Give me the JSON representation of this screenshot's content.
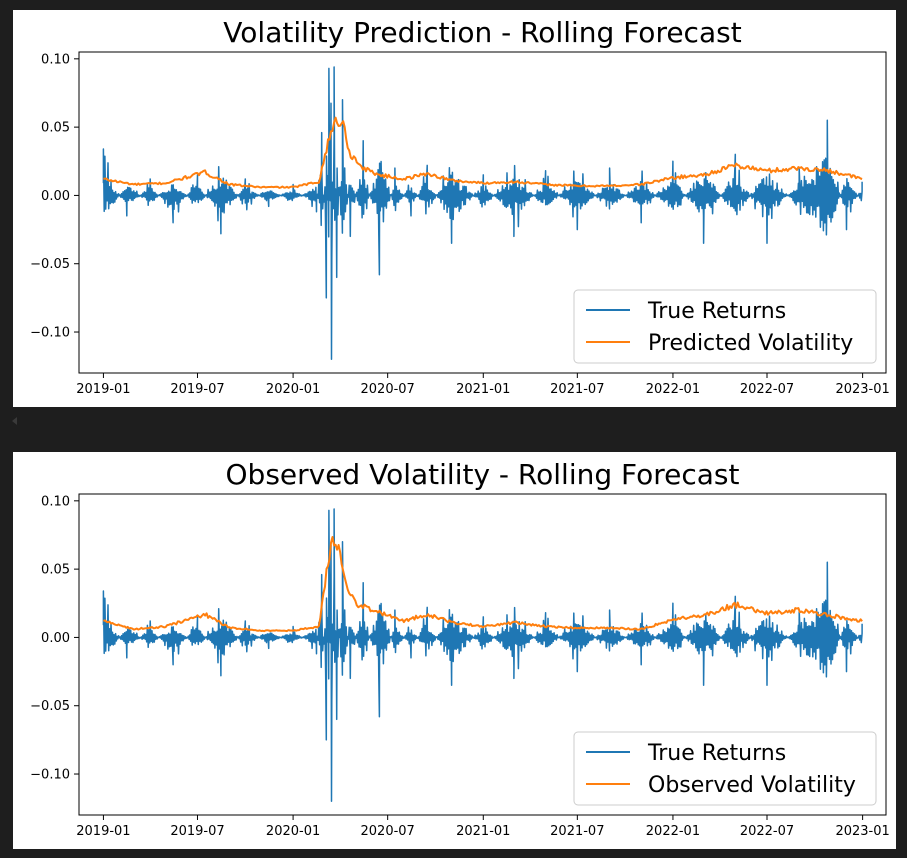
{
  "chart_data": [
    {
      "type": "line",
      "title": "Volatility Prediction - Rolling Forecast",
      "xlabel": "",
      "ylabel": "",
      "xlim": [
        "2018-11-15",
        "2023-02-15"
      ],
      "ylim": [
        -0.13,
        0.105
      ],
      "x_ticks": [
        "2019-01",
        "2019-07",
        "2020-01",
        "2020-07",
        "2021-01",
        "2021-07",
        "2022-01",
        "2022-07",
        "2023-01"
      ],
      "y_ticks": [
        0.1,
        0.05,
        0.0,
        -0.05,
        -0.1
      ],
      "y_tick_labels": [
        "0.10",
        "0.05",
        "0.00",
        "−0.05",
        "−0.10"
      ],
      "grid": false,
      "legend_position": "bottom-right",
      "series": [
        {
          "name": "True Returns",
          "color": "#1f77b4",
          "x": [
            "2019-01-01",
            "2019-02-15",
            "2019-04-01",
            "2019-05-15",
            "2019-07-01",
            "2019-08-15",
            "2019-10-01",
            "2019-11-15",
            "2020-01-01",
            "2020-02-15",
            "2020-02-25",
            "2020-03-05",
            "2020-03-10",
            "2020-03-15",
            "2020-03-20",
            "2020-03-25",
            "2020-04-05",
            "2020-04-20",
            "2020-05-15",
            "2020-06-15",
            "2020-07-15",
            "2020-08-15",
            "2020-09-15",
            "2020-11-01",
            "2021-01-01",
            "2021-03-01",
            "2021-05-01",
            "2021-07-01",
            "2021-09-01",
            "2021-11-01",
            "2022-01-01",
            "2022-03-01",
            "2022-05-01",
            "2022-07-01",
            "2022-09-01",
            "2022-10-25",
            "2022-12-01",
            "2022-12-31"
          ],
          "values": [
            0.034,
            -0.015,
            0.012,
            -0.02,
            0.015,
            -0.028,
            0.012,
            -0.008,
            0.008,
            -0.012,
            0.046,
            -0.075,
            0.093,
            -0.12,
            0.094,
            -0.06,
            0.07,
            -0.03,
            0.04,
            -0.058,
            0.02,
            -0.015,
            0.022,
            -0.035,
            0.015,
            -0.03,
            0.018,
            -0.025,
            0.02,
            -0.02,
            0.025,
            -0.035,
            0.03,
            -0.035,
            0.02,
            0.055,
            -0.025,
            0.01
          ]
        },
        {
          "name": "Predicted Volatility",
          "color": "#ff7f0e",
          "x": [
            "2019-01-01",
            "2019-03-01",
            "2019-05-01",
            "2019-07-15",
            "2019-09-01",
            "2019-11-01",
            "2020-01-01",
            "2020-02-20",
            "2020-03-01",
            "2020-03-20",
            "2020-04-05",
            "2020-04-20",
            "2020-05-15",
            "2020-06-15",
            "2020-08-01",
            "2020-09-15",
            "2020-11-01",
            "2021-01-01",
            "2021-03-01",
            "2021-05-01",
            "2021-07-01",
            "2021-09-01",
            "2021-11-01",
            "2022-01-01",
            "2022-03-01",
            "2022-05-01",
            "2022-07-01",
            "2022-09-01",
            "2022-11-01",
            "2022-12-31"
          ],
          "values": [
            0.012,
            0.008,
            0.009,
            0.017,
            0.008,
            0.006,
            0.006,
            0.01,
            0.028,
            0.054,
            0.054,
            0.03,
            0.02,
            0.015,
            0.012,
            0.016,
            0.011,
            0.009,
            0.01,
            0.008,
            0.007,
            0.007,
            0.008,
            0.013,
            0.015,
            0.022,
            0.018,
            0.02,
            0.018,
            0.012
          ]
        }
      ]
    },
    {
      "type": "line",
      "title": "Observed Volatility - Rolling Forecast",
      "xlabel": "",
      "ylabel": "",
      "xlim": [
        "2018-11-15",
        "2023-02-15"
      ],
      "ylim": [
        -0.13,
        0.105
      ],
      "x_ticks": [
        "2019-01",
        "2019-07",
        "2020-01",
        "2020-07",
        "2021-01",
        "2021-07",
        "2022-01",
        "2022-07",
        "2023-01"
      ],
      "y_ticks": [
        0.1,
        0.05,
        0.0,
        -0.05,
        -0.1
      ],
      "y_tick_labels": [
        "0.10",
        "0.05",
        "0.00",
        "−0.05",
        "−0.10"
      ],
      "grid": false,
      "legend_position": "bottom-right",
      "series": [
        {
          "name": "True Returns",
          "color": "#1f77b4",
          "x": [
            "2019-01-01",
            "2019-02-15",
            "2019-04-01",
            "2019-05-15",
            "2019-07-01",
            "2019-08-15",
            "2019-10-01",
            "2019-11-15",
            "2020-01-01",
            "2020-02-15",
            "2020-02-25",
            "2020-03-05",
            "2020-03-10",
            "2020-03-15",
            "2020-03-20",
            "2020-03-25",
            "2020-04-05",
            "2020-04-20",
            "2020-05-15",
            "2020-06-15",
            "2020-07-15",
            "2020-08-15",
            "2020-09-15",
            "2020-11-01",
            "2021-01-01",
            "2021-03-01",
            "2021-05-01",
            "2021-07-01",
            "2021-09-01",
            "2021-11-01",
            "2022-01-01",
            "2022-03-01",
            "2022-05-01",
            "2022-07-01",
            "2022-09-01",
            "2022-10-25",
            "2022-12-01",
            "2022-12-31"
          ],
          "values": [
            0.034,
            -0.015,
            0.012,
            -0.02,
            0.015,
            -0.028,
            0.012,
            -0.008,
            0.008,
            -0.012,
            0.046,
            -0.075,
            0.093,
            -0.12,
            0.094,
            -0.06,
            0.07,
            -0.03,
            0.04,
            -0.058,
            0.02,
            -0.015,
            0.022,
            -0.035,
            0.015,
            -0.03,
            0.018,
            -0.025,
            0.02,
            -0.02,
            0.025,
            -0.035,
            0.03,
            -0.035,
            0.02,
            0.055,
            -0.025,
            0.01
          ]
        },
        {
          "name": "Observed Volatility",
          "color": "#ff7f0e",
          "x": [
            "2019-01-01",
            "2019-03-01",
            "2019-05-01",
            "2019-07-15",
            "2019-09-01",
            "2019-11-01",
            "2020-01-01",
            "2020-02-20",
            "2020-03-01",
            "2020-03-15",
            "2020-03-25",
            "2020-04-10",
            "2020-05-01",
            "2020-06-01",
            "2020-08-01",
            "2020-09-15",
            "2020-11-01",
            "2021-01-01",
            "2021-03-01",
            "2021-05-01",
            "2021-07-01",
            "2021-09-01",
            "2021-11-01",
            "2022-01-01",
            "2022-03-01",
            "2022-05-01",
            "2022-07-01",
            "2022-09-01",
            "2022-11-01",
            "2022-12-31"
          ],
          "values": [
            0.012,
            0.006,
            0.008,
            0.017,
            0.007,
            0.005,
            0.005,
            0.008,
            0.035,
            0.073,
            0.07,
            0.04,
            0.025,
            0.02,
            0.012,
            0.017,
            0.011,
            0.008,
            0.011,
            0.008,
            0.007,
            0.007,
            0.006,
            0.013,
            0.016,
            0.024,
            0.018,
            0.02,
            0.016,
            0.012
          ]
        }
      ]
    }
  ]
}
